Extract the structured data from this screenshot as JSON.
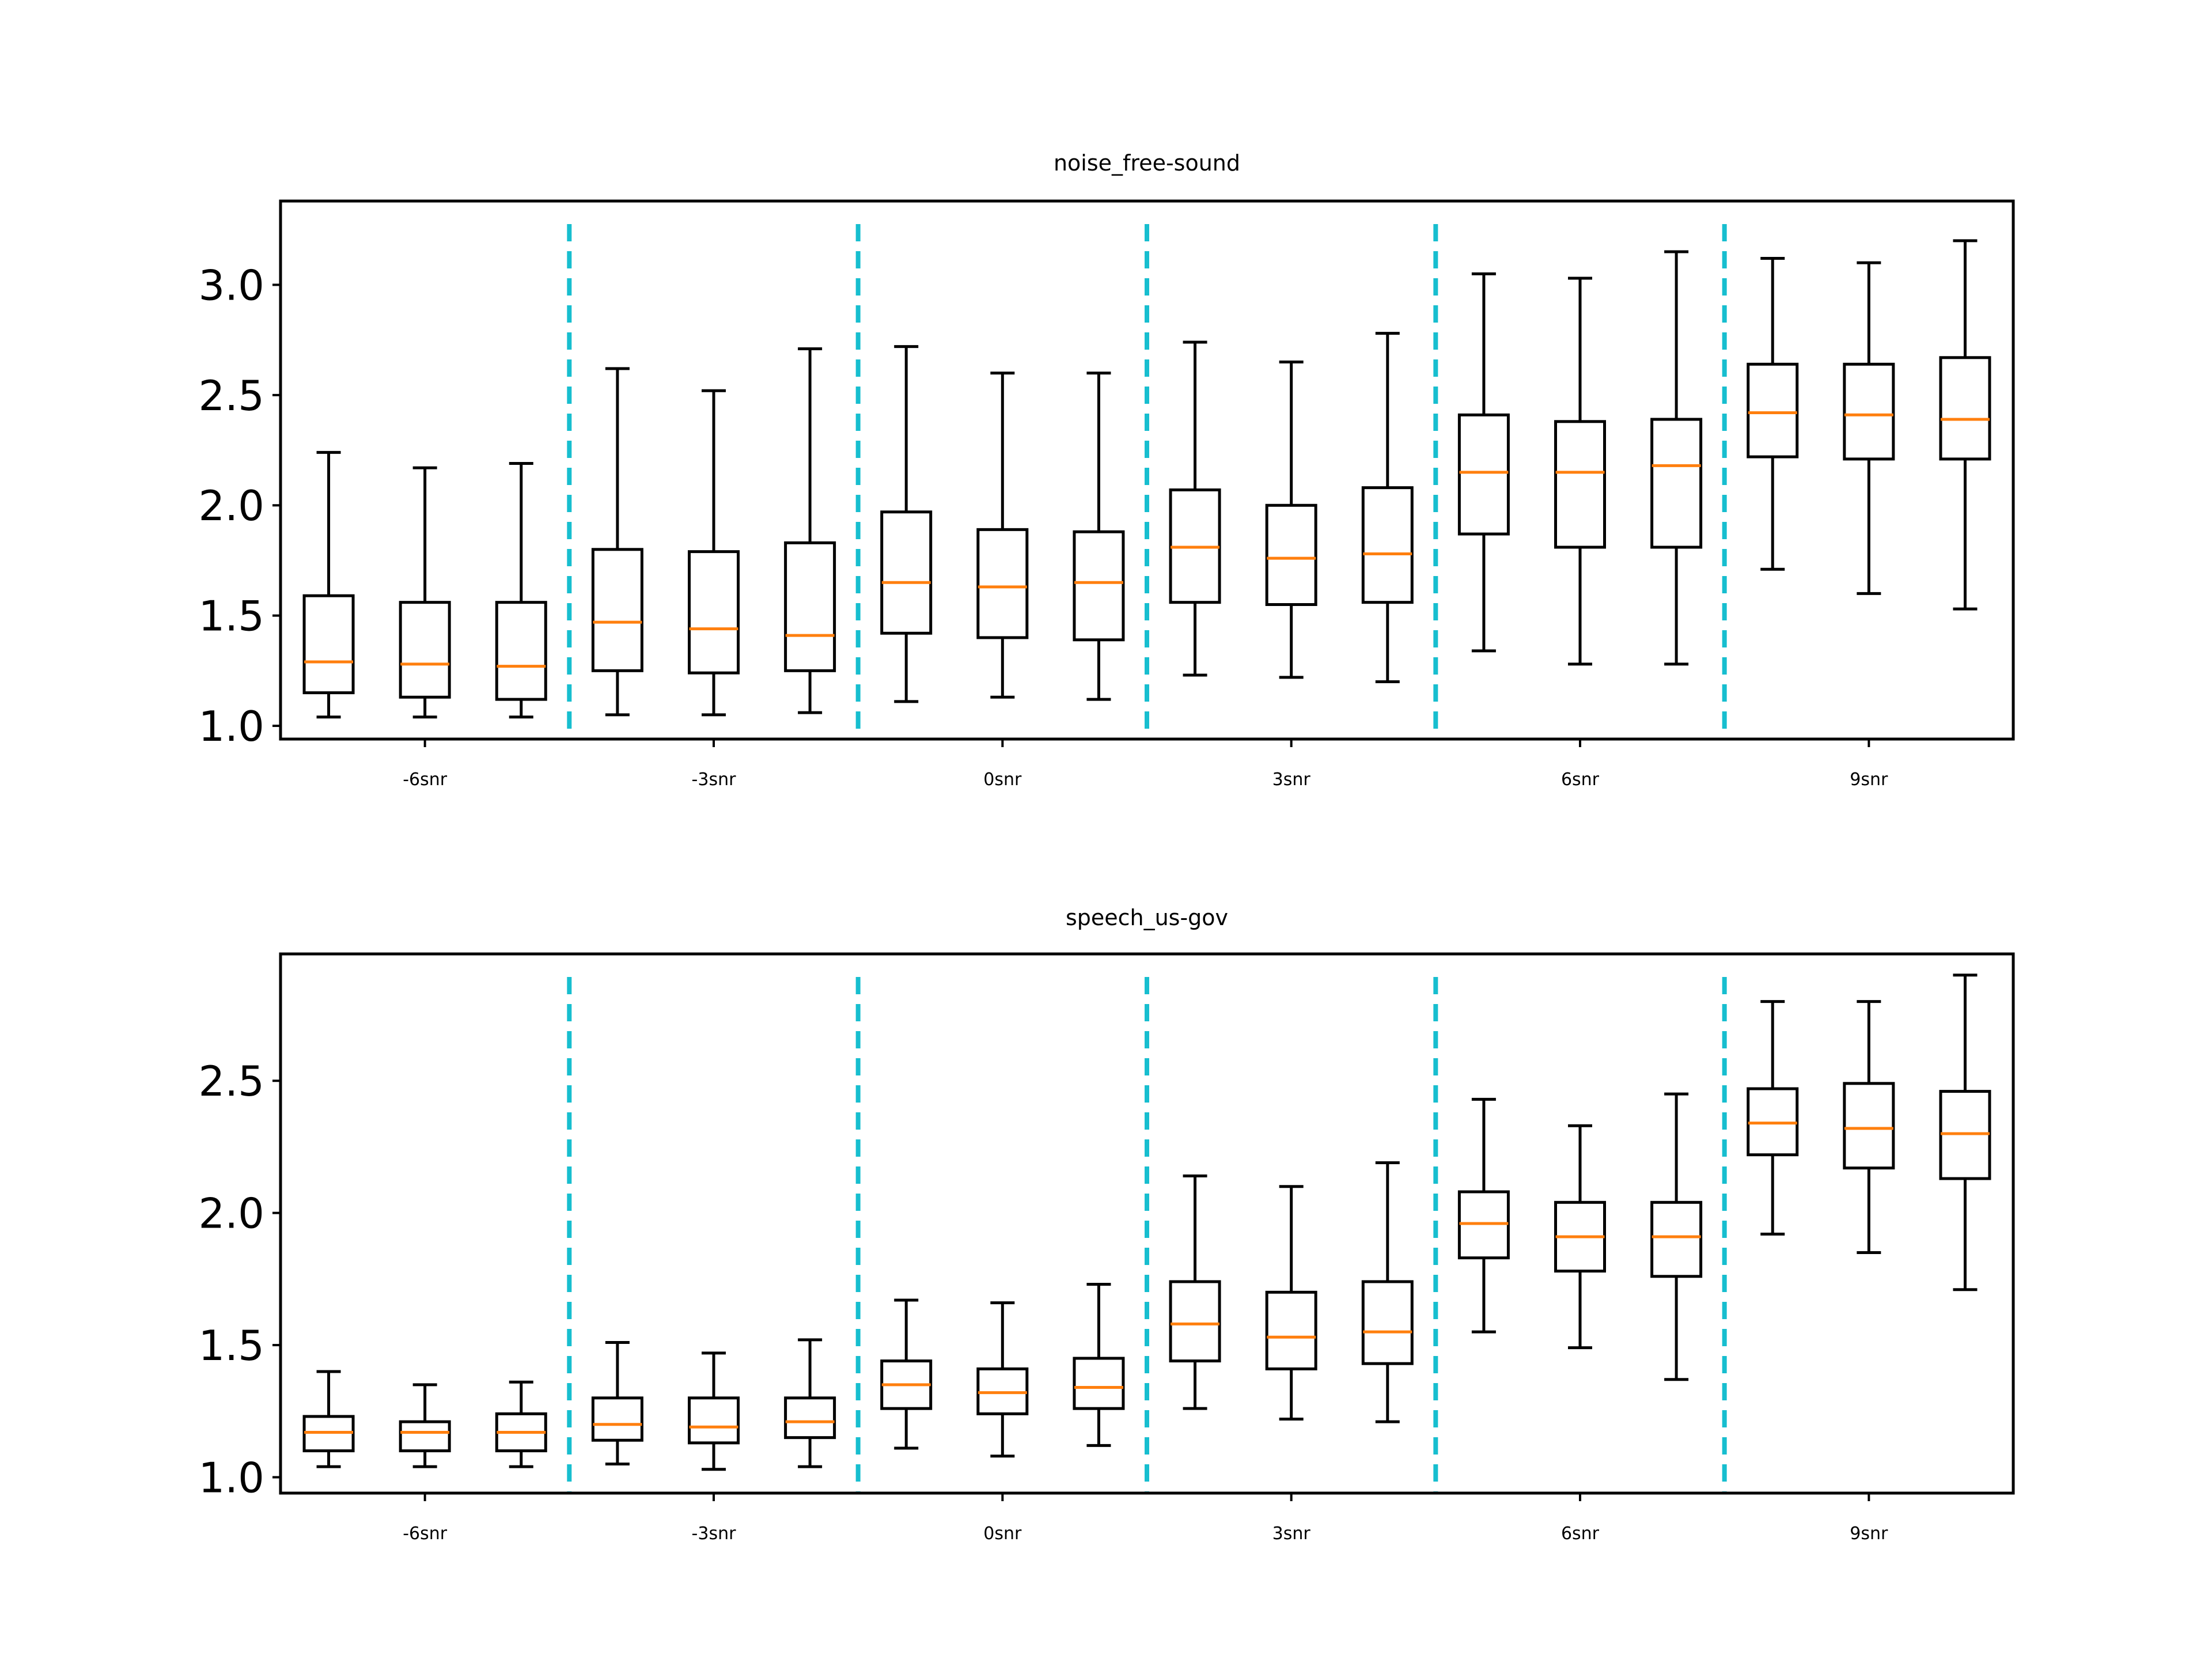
{
  "chart_data": [
    {
      "type": "box",
      "title": "noise_free-sound",
      "xlabel": "",
      "ylabel": "",
      "categories": [
        "-6snr",
        "-3snr",
        "0snr",
        "3snr",
        "6snr",
        "9snr"
      ],
      "boxes_per_group": 3,
      "ylim": [
        0.94,
        3.38
      ],
      "yticks": [
        1.0,
        1.5,
        2.0,
        2.5,
        3.0
      ],
      "ytick_labels": [
        "1.0",
        "1.5",
        "2.0",
        "2.5",
        "3.0"
      ],
      "separators": true,
      "boxes": [
        {
          "whislo": 1.04,
          "q1": 1.15,
          "med": 1.29,
          "q3": 1.59,
          "whishi": 2.24
        },
        {
          "whislo": 1.04,
          "q1": 1.13,
          "med": 1.28,
          "q3": 1.56,
          "whishi": 2.17
        },
        {
          "whislo": 1.04,
          "q1": 1.12,
          "med": 1.27,
          "q3": 1.56,
          "whishi": 2.19
        },
        {
          "whislo": 1.05,
          "q1": 1.25,
          "med": 1.47,
          "q3": 1.8,
          "whishi": 2.62
        },
        {
          "whislo": 1.05,
          "q1": 1.24,
          "med": 1.44,
          "q3": 1.79,
          "whishi": 2.52
        },
        {
          "whislo": 1.06,
          "q1": 1.25,
          "med": 1.41,
          "q3": 1.83,
          "whishi": 2.71
        },
        {
          "whislo": 1.11,
          "q1": 1.42,
          "med": 1.65,
          "q3": 1.97,
          "whishi": 2.72
        },
        {
          "whislo": 1.13,
          "q1": 1.4,
          "med": 1.63,
          "q3": 1.89,
          "whishi": 2.6
        },
        {
          "whislo": 1.12,
          "q1": 1.39,
          "med": 1.65,
          "q3": 1.88,
          "whishi": 2.6
        },
        {
          "whislo": 1.23,
          "q1": 1.56,
          "med": 1.81,
          "q3": 2.07,
          "whishi": 2.74
        },
        {
          "whislo": 1.22,
          "q1": 1.55,
          "med": 1.76,
          "q3": 2.0,
          "whishi": 2.65
        },
        {
          "whislo": 1.2,
          "q1": 1.56,
          "med": 1.78,
          "q3": 2.08,
          "whishi": 2.78
        },
        {
          "whislo": 1.34,
          "q1": 1.87,
          "med": 2.15,
          "q3": 2.41,
          "whishi": 3.05
        },
        {
          "whislo": 1.28,
          "q1": 1.81,
          "med": 2.15,
          "q3": 2.38,
          "whishi": 3.03
        },
        {
          "whislo": 1.28,
          "q1": 1.81,
          "med": 2.18,
          "q3": 2.39,
          "whishi": 3.15
        },
        {
          "whislo": 1.71,
          "q1": 2.22,
          "med": 2.42,
          "q3": 2.64,
          "whishi": 3.12
        },
        {
          "whislo": 1.6,
          "q1": 2.21,
          "med": 2.41,
          "q3": 2.64,
          "whishi": 3.1
        },
        {
          "whislo": 1.53,
          "q1": 2.21,
          "med": 2.39,
          "q3": 2.67,
          "whishi": 3.2
        }
      ]
    },
    {
      "type": "box",
      "title": "speech_us-gov",
      "xlabel": "",
      "ylabel": "",
      "categories": [
        "-6snr",
        "-3snr",
        "0snr",
        "3snr",
        "6snr",
        "9snr"
      ],
      "boxes_per_group": 3,
      "ylim": [
        0.94,
        2.98
      ],
      "yticks": [
        1.0,
        1.5,
        2.0,
        2.5
      ],
      "ytick_labels": [
        "1.0",
        "1.5",
        "2.0",
        "2.5"
      ],
      "separators": true,
      "boxes": [
        {
          "whislo": 1.04,
          "q1": 1.1,
          "med": 1.17,
          "q3": 1.23,
          "whishi": 1.4
        },
        {
          "whislo": 1.04,
          "q1": 1.1,
          "med": 1.17,
          "q3": 1.21,
          "whishi": 1.35
        },
        {
          "whislo": 1.04,
          "q1": 1.1,
          "med": 1.17,
          "q3": 1.24,
          "whishi": 1.36
        },
        {
          "whislo": 1.05,
          "q1": 1.14,
          "med": 1.2,
          "q3": 1.3,
          "whishi": 1.51
        },
        {
          "whislo": 1.03,
          "q1": 1.13,
          "med": 1.19,
          "q3": 1.3,
          "whishi": 1.47
        },
        {
          "whislo": 1.04,
          "q1": 1.15,
          "med": 1.21,
          "q3": 1.3,
          "whishi": 1.52
        },
        {
          "whislo": 1.11,
          "q1": 1.26,
          "med": 1.35,
          "q3": 1.44,
          "whishi": 1.67
        },
        {
          "whislo": 1.08,
          "q1": 1.24,
          "med": 1.32,
          "q3": 1.41,
          "whishi": 1.66
        },
        {
          "whislo": 1.12,
          "q1": 1.26,
          "med": 1.34,
          "q3": 1.45,
          "whishi": 1.73
        },
        {
          "whislo": 1.26,
          "q1": 1.44,
          "med": 1.58,
          "q3": 1.74,
          "whishi": 2.14
        },
        {
          "whislo": 1.22,
          "q1": 1.41,
          "med": 1.53,
          "q3": 1.7,
          "whishi": 2.1
        },
        {
          "whislo": 1.21,
          "q1": 1.43,
          "med": 1.55,
          "q3": 1.74,
          "whishi": 2.19
        },
        {
          "whislo": 1.55,
          "q1": 1.83,
          "med": 1.96,
          "q3": 2.08,
          "whishi": 2.43
        },
        {
          "whislo": 1.49,
          "q1": 1.78,
          "med": 1.91,
          "q3": 2.04,
          "whishi": 2.33
        },
        {
          "whislo": 1.37,
          "q1": 1.76,
          "med": 1.91,
          "q3": 2.04,
          "whishi": 2.45
        },
        {
          "whislo": 1.92,
          "q1": 2.22,
          "med": 2.34,
          "q3": 2.47,
          "whishi": 2.8
        },
        {
          "whislo": 1.85,
          "q1": 2.17,
          "med": 2.32,
          "q3": 2.49,
          "whishi": 2.8
        },
        {
          "whislo": 1.71,
          "q1": 2.13,
          "med": 2.3,
          "q3": 2.46,
          "whishi": 2.9
        }
      ]
    }
  ],
  "colors": {
    "box_edge": "#000000",
    "median": "#ff7f0e",
    "separator": "#17becf",
    "background": "#ffffff"
  }
}
